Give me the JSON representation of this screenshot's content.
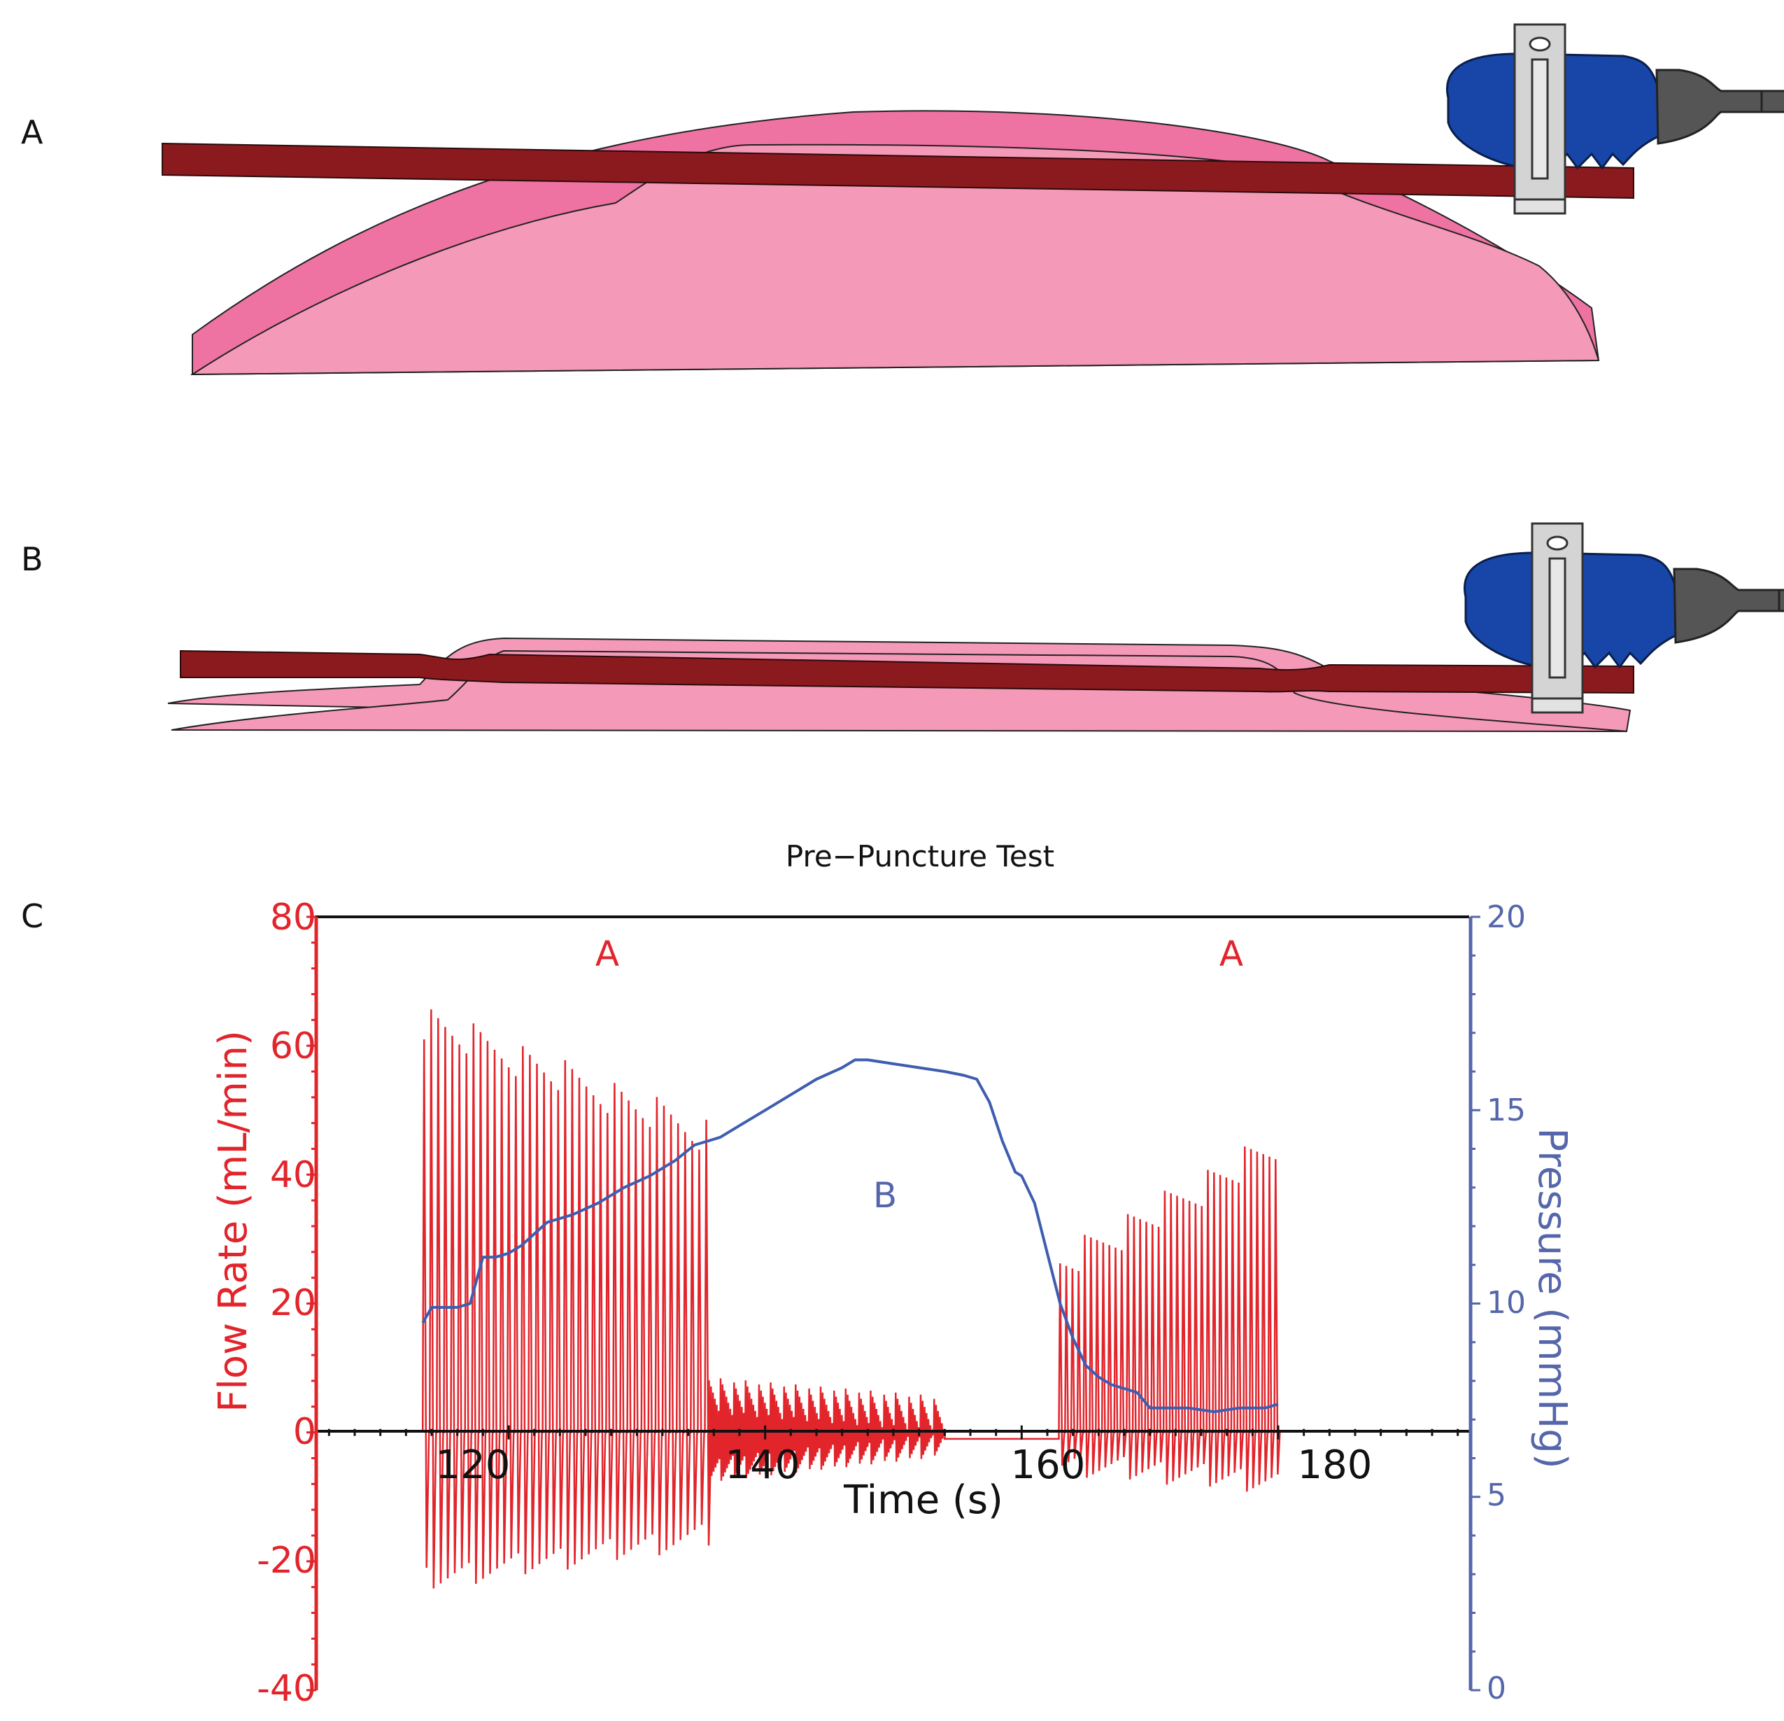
{
  "panels": {
    "a_label": "A",
    "b_label": "B",
    "c_label": "C"
  },
  "icons": [
    "vessel-compressed-diagram",
    "vessel-deflated-diagram",
    "ultrasound-flow-probe-icon"
  ],
  "colors": {
    "tissue_light": "#f49ab8",
    "tissue_dark": "#ee72a2",
    "vessel": "#8b1a1e",
    "probe_body": "#1746a8",
    "probe_neck": "#555555",
    "probe_clip": "#d4d4d4",
    "flow_series": "#e2242b",
    "pressure_series": "#3f5db0"
  },
  "chart_data": {
    "type": "line",
    "title": "Pre−Puncture Test",
    "xlabel": "Time (s)",
    "ylabel_left": "Flow Rate (mL/min)",
    "ylabel_right": "Pressure (mmHg)",
    "xlim": [
      105,
      195
    ],
    "ylim_left": [
      -40,
      80
    ],
    "ylim_right": [
      0,
      20
    ],
    "x_ticks": [
      120,
      140,
      160,
      180
    ],
    "y_ticks_left": [
      80,
      60,
      40,
      20,
      0,
      -20,
      -40
    ],
    "y_ticks_right": [
      20,
      15,
      10,
      5,
      0
    ],
    "grid": false,
    "annotations": [
      {
        "text": "A",
        "x": 127.5,
        "y_left": 74
      },
      {
        "text": "B",
        "x": 149,
        "y_left": 37
      },
      {
        "text": "A",
        "x": 176,
        "y_left": 74
      }
    ],
    "series": [
      {
        "name": "Flow Rate",
        "axis": "left",
        "kind": "oscillation_envelope",
        "color": "#e2242b",
        "segments": [
          {
            "t_start": 113.3,
            "t_end": 135.6,
            "period": 0.55,
            "peak_start": 64,
            "peak_end": 46,
            "trough_start": -23,
            "trough_end": -16
          },
          {
            "t_start": 135.6,
            "t_end": 154.0,
            "period": 0.15,
            "peak_start": 6,
            "peak_end": 3,
            "trough_start": -6,
            "trough_end": -2
          },
          {
            "t_start": 154.0,
            "t_end": 162.9,
            "period": 0.0,
            "peak_start": -1,
            "peak_end": -1,
            "trough_start": -1,
            "trough_end": -1
          },
          {
            "t_start": 162.9,
            "t_end": 180.0,
            "period": 0.48,
            "peak_start": 26,
            "peak_end": 45,
            "trough_start": -5,
            "trough_end": -8
          }
        ]
      },
      {
        "name": "Pressure",
        "axis": "right",
        "color": "#3f5db0",
        "x": [
          113.3,
          114.0,
          115.0,
          116.0,
          117.0,
          118.0,
          119.0,
          120.0,
          121.0,
          122.0,
          123.0,
          125.0,
          127.0,
          129.0,
          131.0,
          133.0,
          134.5,
          135.5,
          136.5,
          138.0,
          140.0,
          142.0,
          144.0,
          146.0,
          147.0,
          148.0,
          150.0,
          152.0,
          154.0,
          155.5,
          156.5,
          157.5,
          158.5,
          159.5,
          160.0,
          161.0,
          162.0,
          163.0,
          164.0,
          165.0,
          166.0,
          167.0,
          168.0,
          169.0,
          170.0,
          171.0,
          172.0,
          173.0,
          175.0,
          177.0,
          179.0,
          180.0
        ],
        "y": [
          9.5,
          9.9,
          9.9,
          9.9,
          10.0,
          11.2,
          11.2,
          11.3,
          11.5,
          11.8,
          12.1,
          12.3,
          12.6,
          13.0,
          13.3,
          13.7,
          14.1,
          14.2,
          14.3,
          14.6,
          15.0,
          15.4,
          15.8,
          16.1,
          16.3,
          16.3,
          16.2,
          16.1,
          16.0,
          15.9,
          15.8,
          15.2,
          14.2,
          13.4,
          13.3,
          12.6,
          11.3,
          10.0,
          9.1,
          8.4,
          8.1,
          7.9,
          7.8,
          7.7,
          7.3,
          7.3,
          7.3,
          7.3,
          7.2,
          7.3,
          7.3,
          7.4
        ]
      }
    ]
  }
}
